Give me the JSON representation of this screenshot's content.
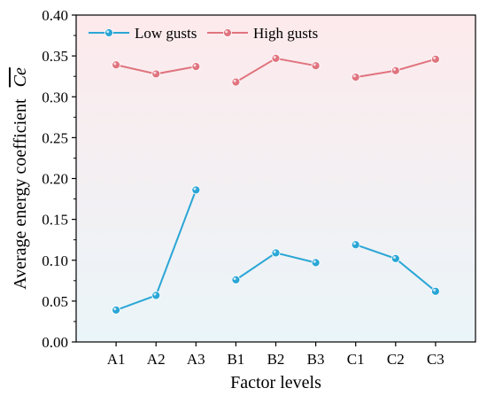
{
  "chart_data": {
    "type": "line",
    "xlabel": "Factor levels",
    "ylabel_text": "Average energy coefficient",
    "ylabel_symbol": "Ce",
    "categories": [
      "A1",
      "A2",
      "A3",
      "B1",
      "B2",
      "B3",
      "C1",
      "C2",
      "C3"
    ],
    "groups": [
      [
        0,
        1,
        2
      ],
      [
        3,
        4,
        5
      ],
      [
        6,
        7,
        8
      ]
    ],
    "ylim": [
      0,
      0.4
    ],
    "yticks": [
      "0.00",
      "0.05",
      "0.10",
      "0.15",
      "0.20",
      "0.25",
      "0.30",
      "0.35",
      "0.40"
    ],
    "grid": false,
    "legend_position": "top-left",
    "series": [
      {
        "name": "Low gusts",
        "color": "#2aa6d6",
        "values": [
          0.039,
          0.057,
          0.186,
          0.076,
          0.109,
          0.097,
          0.119,
          0.102,
          0.062
        ]
      },
      {
        "name": "High gusts",
        "color": "#e0747f",
        "values": [
          0.339,
          0.328,
          0.337,
          0.318,
          0.347,
          0.338,
          0.324,
          0.332,
          0.346
        ]
      }
    ],
    "background_gradient": [
      "#fdeaec",
      "#eaf5f9"
    ]
  }
}
